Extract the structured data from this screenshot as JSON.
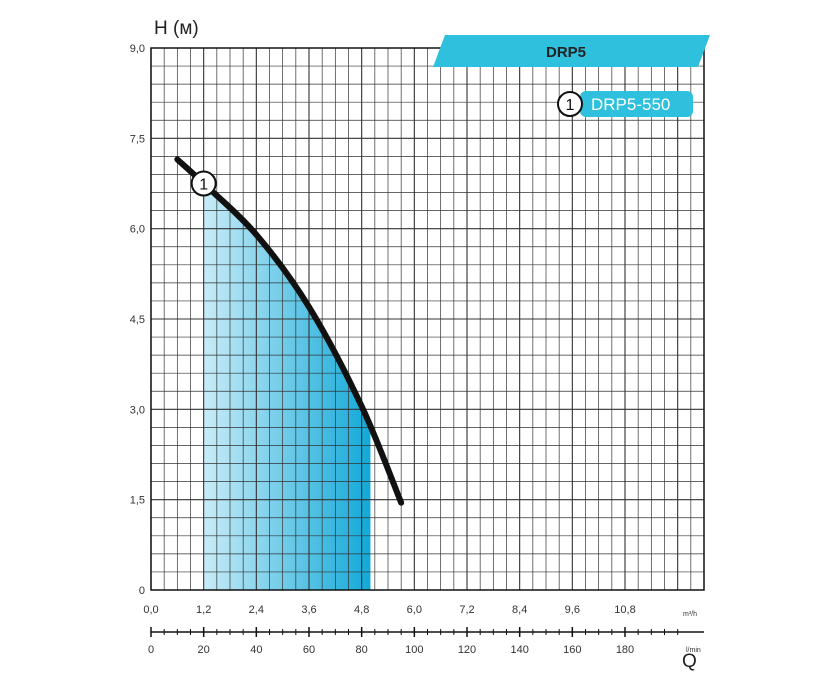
{
  "chart_data": {
    "type": "line",
    "title": "DRP5",
    "ylabel": "H (м)",
    "xlabel": "Q",
    "x_unit": "m³/h",
    "x2_unit": "l/min",
    "xlim": [
      0,
      12.6
    ],
    "ylim": [
      0,
      9
    ],
    "x_ticks": [
      "0,0",
      "1,2",
      "2,4",
      "3,6",
      "4,8",
      "6,0",
      "7,2",
      "8,4",
      "9,6",
      "10,8"
    ],
    "x2_ticks": [
      "0",
      "20",
      "40",
      "60",
      "80",
      "100",
      "120",
      "140",
      "160",
      "180"
    ],
    "y_ticks": [
      "0",
      "1,5",
      "3,0",
      "4,5",
      "6,0",
      "7,5",
      "9,0"
    ],
    "grid": true,
    "shaded_region": {
      "x_from": 1.2,
      "x_to": 5.0,
      "colors": [
        "#c8ecf8",
        "#12a9d8"
      ]
    },
    "series": [
      {
        "name": "DRP5-550",
        "marker_label": "1",
        "color": "#111111",
        "x": [
          0.6,
          1.2,
          2.4,
          3.6,
          4.8,
          5.7
        ],
        "y": [
          7.15,
          6.75,
          5.9,
          4.7,
          3.05,
          1.45
        ]
      }
    ]
  },
  "colors": {
    "accent": "#2ec0dc",
    "curve": "#111111",
    "grid": "#222222"
  }
}
